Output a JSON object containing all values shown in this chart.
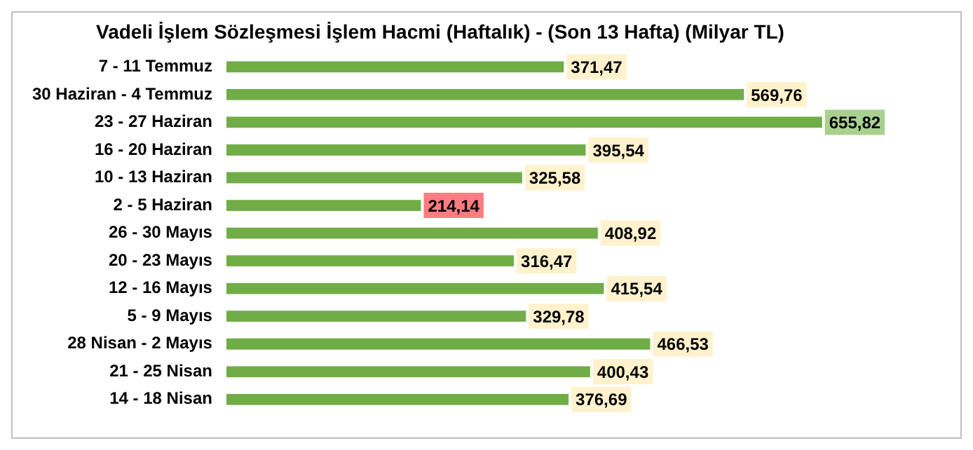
{
  "chart_data": {
    "type": "bar",
    "orientation": "horizontal",
    "title": "Vadeli İşlem Sözleşmesi İşlem Hacmi (Haftalık) - (Son 13 Hafta) (Milyar TL)",
    "categories": [
      "7 - 11 Temmuz",
      "30 Haziran - 4 Temmuz",
      "23 - 27 Haziran",
      "16 - 20 Haziran",
      "10 - 13 Haziran",
      "2 - 5 Haziran",
      "26 - 30 Mayıs",
      "20 - 23 Mayıs",
      "12 - 16 Mayıs",
      "5 - 9 Mayıs",
      "28 Nisan - 2 Mayıs",
      "21 - 25 Nisan",
      "14 - 18 Nisan"
    ],
    "values": [
      371.47,
      569.76,
      655.82,
      395.54,
      325.58,
      214.14,
      408.92,
      316.47,
      415.54,
      329.78,
      466.53,
      400.43,
      376.69
    ],
    "value_labels": [
      "371,47",
      "569,76",
      "655,82",
      "395,54",
      "325,58",
      "214,14",
      "408,92",
      "316,47",
      "415,54",
      "329,78",
      "466,53",
      "400,43",
      "376,69"
    ],
    "color": "#70ad47",
    "grid": false,
    "legend": false
  }
}
